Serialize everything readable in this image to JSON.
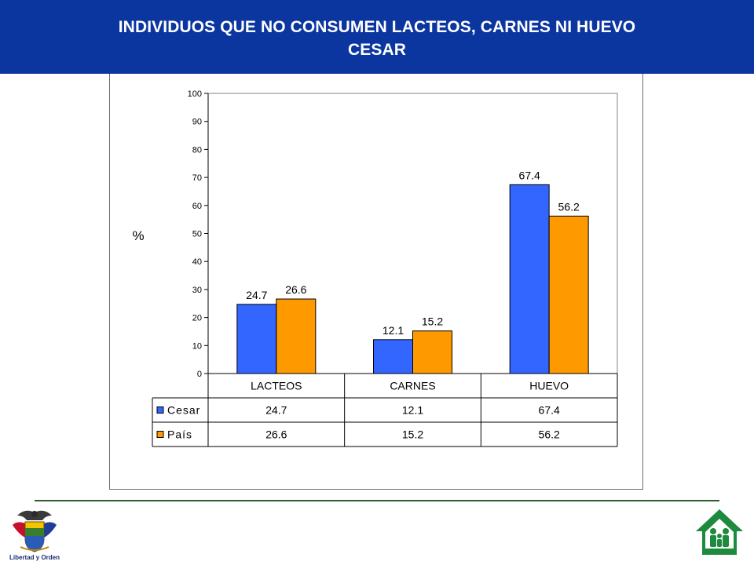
{
  "header": {
    "title_line1": "INDIVIDUOS QUE NO CONSUMEN LACTEOS, CARNES NI HUEVO",
    "title_line2": "CESAR"
  },
  "chart_data": {
    "type": "bar",
    "title": "INDIVIDUOS QUE NO CONSUMEN LACTEOS, CARNES NI HUEVO CESAR",
    "ylabel": "%",
    "xlabel": "",
    "categories": [
      "LACTEOS",
      "CARNES",
      "HUEVO"
    ],
    "series": [
      {
        "name": "Cesar",
        "values": [
          24.7,
          12.1,
          67.4
        ],
        "labels": [
          "24.7",
          "12.1",
          "67.4"
        ],
        "color": "#3366ff"
      },
      {
        "name": "País",
        "values": [
          26.6,
          15.2,
          56.2
        ],
        "labels": [
          "26.6",
          "15.2",
          "56.2"
        ],
        "color": "#ff9900"
      }
    ],
    "ylim": [
      0,
      100
    ],
    "yticks": [
      "0",
      "10",
      "20",
      "30",
      "40",
      "50",
      "60",
      "70",
      "80",
      "90",
      "100"
    ],
    "grid": false,
    "legend": "data-table"
  },
  "footer": {
    "left_logo_caption": "Libertad y Orden",
    "colors": {
      "divider": "#2e5a2e",
      "right_logo": "#1e8a3e"
    },
    "icons": [
      "colombia-coat-of-arms-icon",
      "icbf-family-house-icon"
    ]
  }
}
